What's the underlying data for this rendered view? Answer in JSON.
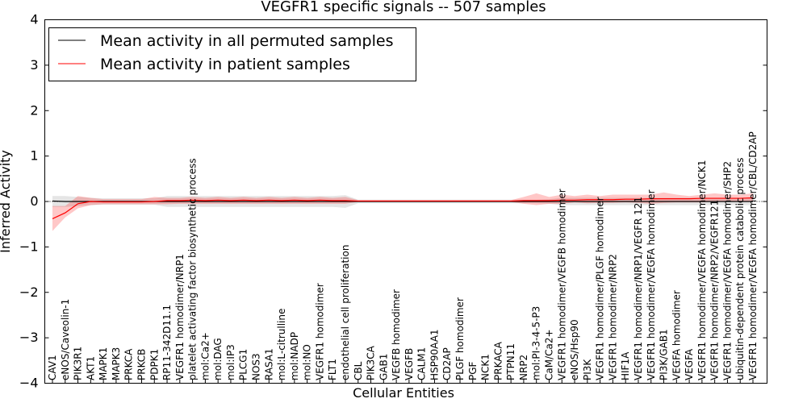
{
  "chart_data": {
    "type": "line",
    "title": "VEGFR1 specific signals -- 507 samples",
    "xlabel": "Cellular Entities",
    "ylabel": "Inferred Activity",
    "ylim": [
      -4,
      4
    ],
    "yticks": [
      "4",
      "3",
      "2",
      "1",
      "0",
      "−1",
      "−2",
      "−3",
      "−4"
    ],
    "legend": {
      "placement": "top-left",
      "entries": [
        {
          "label": "Mean activity in all permuted samples",
          "color": "#000000"
        },
        {
          "label": "Mean activity in patient samples",
          "color": "#ff0000"
        }
      ]
    },
    "categories": [
      "CAV1",
      "eNOS/Caveolin-1",
      "PIK3R1",
      "AKT1",
      "MAPK1",
      "MAPK3",
      "PRKCA",
      "PRKCB",
      "PDPK1",
      "RP11-342D11.1",
      "VEGFR1 homodimer/NRP1",
      "platelet activating factor biosynthetic process",
      "mol:Ca2+",
      "mol:DAG",
      "mol:IP3",
      "PLCG1",
      "NOS3",
      "RASA1",
      "mol:L-citrulline",
      "mol:NADP",
      "mol:NO",
      "VEGFR1 homodimer",
      "FLT1",
      "endothelial cell proliferation",
      "CBL",
      "PIK3CA",
      "GAB1",
      "VEGFB homodimer",
      "VEGFB",
      "CALM1",
      "HSP90AA1",
      "CD2AP",
      "PLGF homodimer",
      "PGF",
      "NCK1",
      "PRKACA",
      "PTPN11",
      "NRP2",
      "mol:PI-3-4-5-P3",
      "CaM/Ca2+",
      "VEGFR1 homodimer/VEGFB homodimer",
      "eNOS/Hsp90",
      "PI3K",
      "VEGFR1 homodimer/PLGF homodimer",
      "VEGFR1 homodimer/NRP2",
      "HIF1A",
      "VEGFR1 homodimer/NRP1/VEGFR 121",
      "VEGFR1 homodimer/VEGFA homodimer",
      "PI3K/GAB1",
      "VEGFA homodimer",
      "VEGFA",
      "VEGFR1 homodimer/VEGFA homodimer/NCK1",
      "VEGFR1 homodimer/NRP2/VEGFR121",
      "VEGFR1 homodimer/VEGFA homodimer/SHP2",
      "ubiquitin-dependent protein catabolic process",
      "VEGFR1 homodimer/VEGFA homodimer/CBL/CD2AP"
    ],
    "series": [
      {
        "name": "Mean activity in all permuted samples",
        "color": "#000000",
        "values": [
          0.01,
          0.0,
          0.0,
          0.0,
          0.0,
          0.0,
          0.0,
          0.0,
          0.0,
          0.0,
          0.0,
          0.0,
          0.0,
          0.0,
          0.0,
          0.0,
          0.0,
          0.0,
          0.0,
          0.0,
          0.0,
          0.0,
          0.0,
          0.0,
          0.0,
          0.0,
          0.0,
          0.0,
          0.0,
          0.0,
          0.0,
          0.0,
          0.0,
          0.0,
          0.0,
          0.0,
          0.0,
          0.0,
          0.0,
          0.0,
          0.0,
          0.0,
          0.0,
          0.0,
          0.0,
          0.0,
          0.0,
          0.0,
          0.0,
          0.0,
          0.0,
          0.0,
          0.0,
          0.0,
          0.0,
          0.0
        ],
        "band_lower": [
          -0.12,
          -0.12,
          -0.1,
          -0.08,
          -0.07,
          -0.07,
          -0.07,
          -0.07,
          -0.07,
          -0.12,
          -0.12,
          -0.12,
          -0.12,
          -0.12,
          -0.12,
          -0.12,
          -0.12,
          -0.12,
          -0.12,
          -0.12,
          -0.12,
          -0.12,
          -0.12,
          -0.14,
          -0.04,
          -0.04,
          -0.04,
          -0.04,
          -0.04,
          -0.04,
          -0.04,
          -0.04,
          -0.04,
          -0.04,
          -0.04,
          -0.04,
          -0.04,
          -0.04,
          -0.04,
          -0.05,
          -0.08,
          -0.08,
          -0.08,
          -0.08,
          -0.08,
          -0.08,
          -0.08,
          -0.08,
          -0.08,
          -0.08,
          -0.08,
          -0.08,
          -0.08,
          -0.08,
          -0.08,
          -0.08
        ],
        "band_upper": [
          0.12,
          0.12,
          0.1,
          0.08,
          0.07,
          0.07,
          0.07,
          0.07,
          0.07,
          0.12,
          0.12,
          0.12,
          0.12,
          0.12,
          0.12,
          0.12,
          0.12,
          0.12,
          0.12,
          0.12,
          0.12,
          0.12,
          0.12,
          0.14,
          0.04,
          0.04,
          0.04,
          0.04,
          0.04,
          0.04,
          0.04,
          0.04,
          0.04,
          0.04,
          0.04,
          0.04,
          0.04,
          0.04,
          0.04,
          0.05,
          0.08,
          0.08,
          0.08,
          0.08,
          0.08,
          0.08,
          0.08,
          0.08,
          0.08,
          0.08,
          0.08,
          0.08,
          0.08,
          0.08,
          0.08,
          0.08
        ]
      },
      {
        "name": "Mean activity in patient samples",
        "color": "#ff0000",
        "values": [
          -0.38,
          -0.25,
          -0.05,
          0.0,
          -0.01,
          -0.01,
          -0.01,
          -0.01,
          0.0,
          0.02,
          0.02,
          0.03,
          0.02,
          0.03,
          0.02,
          0.03,
          0.02,
          0.03,
          0.02,
          0.03,
          0.02,
          0.03,
          0.02,
          0.02,
          0.01,
          0.01,
          0.01,
          0.01,
          0.01,
          0.01,
          0.01,
          0.01,
          0.01,
          0.01,
          0.01,
          0.01,
          0.01,
          0.02,
          0.02,
          0.02,
          0.03,
          0.03,
          0.04,
          0.04,
          0.04,
          0.05,
          0.05,
          0.06,
          0.06,
          0.06,
          0.06,
          0.07,
          0.07,
          0.07,
          0.07,
          0.08
        ],
        "band_lower": [
          -0.65,
          -0.35,
          -0.15,
          -0.08,
          -0.06,
          -0.06,
          -0.06,
          -0.06,
          -0.06,
          -0.06,
          -0.05,
          -0.05,
          -0.05,
          -0.05,
          -0.05,
          -0.05,
          -0.05,
          -0.05,
          -0.05,
          -0.05,
          -0.05,
          -0.05,
          -0.05,
          -0.05,
          -0.01,
          -0.01,
          -0.01,
          -0.01,
          -0.01,
          -0.01,
          -0.01,
          -0.01,
          -0.01,
          -0.01,
          -0.01,
          -0.01,
          -0.01,
          -0.05,
          -0.08,
          -0.05,
          -0.05,
          -0.02,
          -0.04,
          -0.03,
          -0.03,
          -0.02,
          -0.03,
          -0.05,
          -0.03,
          -0.02,
          -0.02,
          -0.02,
          0.0,
          0.0,
          0.0,
          0.0
        ],
        "band_upper": [
          -0.1,
          -0.1,
          0.12,
          0.08,
          0.05,
          0.05,
          0.05,
          0.05,
          0.1,
          0.08,
          0.08,
          0.1,
          0.08,
          0.1,
          0.08,
          0.1,
          0.08,
          0.1,
          0.08,
          0.1,
          0.08,
          0.1,
          0.08,
          0.1,
          0.03,
          0.03,
          0.03,
          0.03,
          0.03,
          0.03,
          0.03,
          0.03,
          0.03,
          0.03,
          0.03,
          0.03,
          0.03,
          0.1,
          0.18,
          0.1,
          0.15,
          0.12,
          0.15,
          0.12,
          0.15,
          0.15,
          0.15,
          0.15,
          0.2,
          0.15,
          0.12,
          0.15,
          0.18,
          0.15,
          0.15,
          0.18
        ]
      }
    ]
  }
}
